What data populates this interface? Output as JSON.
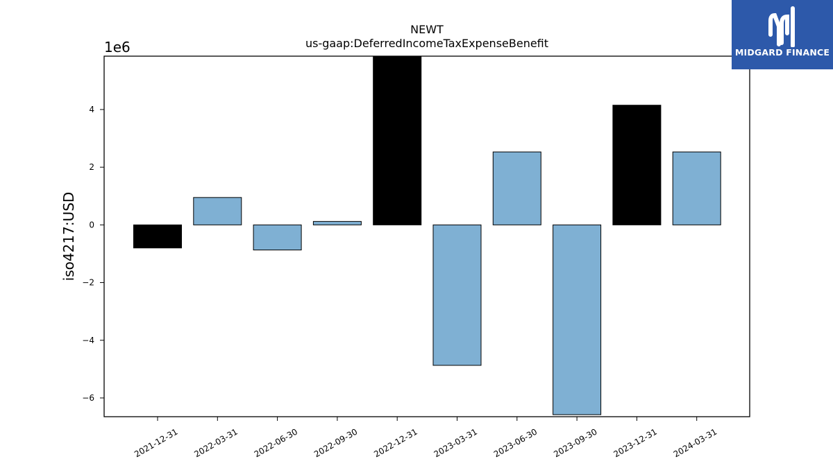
{
  "chart_data": {
    "type": "bar",
    "title": "NEWT",
    "subtitle": "us-gaap:DeferredIncomeTaxExpenseBenefit",
    "ylabel": "iso4217:USD",
    "xlabel": "",
    "scale_label": "1e6",
    "ylim": [
      -6.65,
      5.85
    ],
    "yticks": [
      -6,
      -4,
      -2,
      0,
      2,
      4
    ],
    "ytick_labels": [
      "−6",
      "−4",
      "−2",
      "0",
      "2",
      "4"
    ],
    "categories": [
      "2021-12-31",
      "2022-03-31",
      "2022-06-30",
      "2022-09-30",
      "2022-12-31",
      "2023-03-31",
      "2023-06-30",
      "2023-09-30",
      "2023-12-31",
      "2024-03-31"
    ],
    "values": [
      -0.8,
      0.95,
      -0.87,
      0.12,
      5.85,
      -4.87,
      2.53,
      -6.58,
      4.15,
      2.53
    ],
    "bar_colors": [
      "#000000",
      "#7fb0d3",
      "#7fb0d3",
      "#7fb0d3",
      "#000000",
      "#7fb0d3",
      "#7fb0d3",
      "#7fb0d3",
      "#000000",
      "#7fb0d3"
    ],
    "grid": false
  },
  "logo": {
    "text": "MIDGARD FINANCE",
    "background": "#2d59aa"
  }
}
